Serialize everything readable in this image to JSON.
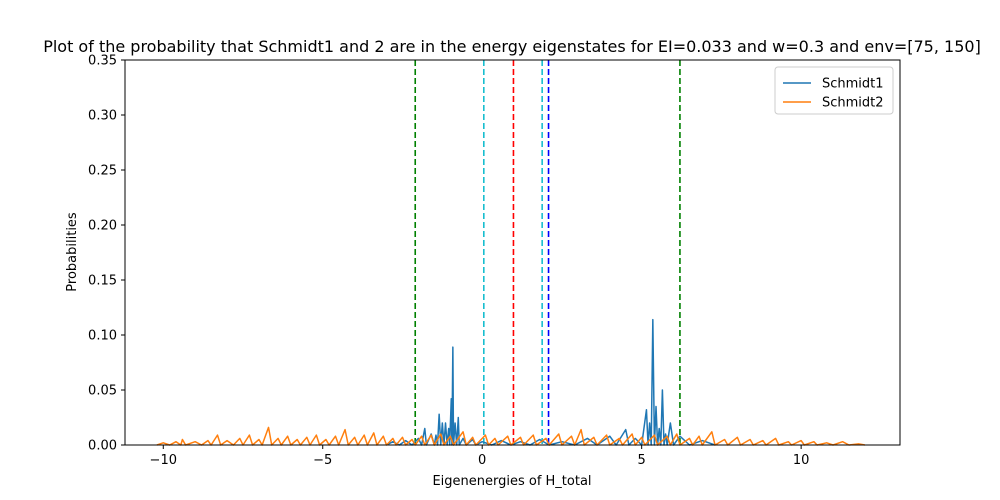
{
  "chart_data": {
    "type": "line",
    "title": "Plot of the probability that Schmidt1 and 2 are in the energy eigenstates for EI=0.033 and w=0.3 and env=[75, 150]",
    "xlabel": "Eigenenergies of H_total",
    "ylabel": "Probabilities",
    "xlim": [
      -11.2,
      13.1
    ],
    "ylim": [
      0,
      0.35
    ],
    "xticks": [
      -10,
      -5,
      0,
      5,
      10
    ],
    "xtick_labels": [
      "−10",
      "−5",
      "0",
      "5",
      "10"
    ],
    "yticks": [
      0.0,
      0.05,
      0.1,
      0.15,
      0.2,
      0.25,
      0.3,
      0.35
    ],
    "ytick_labels": [
      "0.00",
      "0.05",
      "0.10",
      "0.15",
      "0.20",
      "0.25",
      "0.30",
      "0.35"
    ],
    "legend_position": "top-right",
    "series": [
      {
        "name": "Schmidt1",
        "color": "#1f77b4",
        "points": [
          [
            -3.0,
            0.0
          ],
          [
            -2.8,
            0.003
          ],
          [
            -2.6,
            0.0
          ],
          [
            -2.4,
            0.004
          ],
          [
            -2.2,
            0.0
          ],
          [
            -2.0,
            0.006
          ],
          [
            -1.9,
            0.0
          ],
          [
            -1.8,
            0.015
          ],
          [
            -1.75,
            0.0
          ],
          [
            -1.6,
            0.01
          ],
          [
            -1.5,
            0.0
          ],
          [
            -1.45,
            0.009
          ],
          [
            -1.4,
            0.0
          ],
          [
            -1.35,
            0.028
          ],
          [
            -1.3,
            0.0
          ],
          [
            -1.25,
            0.02
          ],
          [
            -1.2,
            0.0
          ],
          [
            -1.15,
            0.02
          ],
          [
            -1.1,
            0.0
          ],
          [
            -1.05,
            0.015
          ],
          [
            -1.02,
            0.0
          ],
          [
            -0.97,
            0.042
          ],
          [
            -0.95,
            0.0
          ],
          [
            -0.92,
            0.089
          ],
          [
            -0.9,
            0.0
          ],
          [
            -0.85,
            0.02
          ],
          [
            -0.8,
            0.0
          ],
          [
            -0.75,
            0.025
          ],
          [
            -0.72,
            0.0
          ],
          [
            -0.6,
            0.006
          ],
          [
            -0.5,
            0.0
          ],
          [
            -0.3,
            0.005
          ],
          [
            -0.2,
            0.0
          ],
          [
            0.0,
            0.003
          ],
          [
            0.3,
            0.0
          ],
          [
            0.6,
            0.004
          ],
          [
            0.9,
            0.0
          ],
          [
            1.2,
            0.003
          ],
          [
            1.5,
            0.0
          ],
          [
            1.8,
            0.005
          ],
          [
            2.1,
            0.0
          ],
          [
            2.5,
            0.003
          ],
          [
            2.9,
            0.0
          ],
          [
            3.3,
            0.006
          ],
          [
            3.6,
            0.0
          ],
          [
            4.0,
            0.008
          ],
          [
            4.2,
            0.0
          ],
          [
            4.5,
            0.014
          ],
          [
            4.6,
            0.0
          ],
          [
            4.8,
            0.006
          ],
          [
            5.0,
            0.0
          ],
          [
            5.15,
            0.032
          ],
          [
            5.2,
            0.0
          ],
          [
            5.25,
            0.02
          ],
          [
            5.3,
            0.0
          ],
          [
            5.35,
            0.114
          ],
          [
            5.4,
            0.0
          ],
          [
            5.45,
            0.035
          ],
          [
            5.5,
            0.0
          ],
          [
            5.55,
            0.015
          ],
          [
            5.6,
            0.0
          ],
          [
            5.65,
            0.05
          ],
          [
            5.7,
            0.0
          ],
          [
            5.75,
            0.01
          ],
          [
            5.8,
            0.0
          ],
          [
            5.9,
            0.02
          ],
          [
            6.0,
            0.0
          ],
          [
            6.2,
            0.008
          ],
          [
            6.5,
            0.0
          ],
          [
            6.9,
            0.004
          ],
          [
            7.3,
            0.0
          ]
        ]
      },
      {
        "name": "Schmidt2",
        "color": "#ff7f0e",
        "points": [
          [
            -10.2,
            0.0
          ],
          [
            -10.0,
            0.002
          ],
          [
            -9.8,
            0.0
          ],
          [
            -9.6,
            0.003
          ],
          [
            -9.45,
            0.0
          ],
          [
            -9.4,
            0.005
          ],
          [
            -9.3,
            0.0
          ],
          [
            -9.0,
            0.003
          ],
          [
            -8.8,
            0.0
          ],
          [
            -8.6,
            0.004
          ],
          [
            -8.5,
            0.0
          ],
          [
            -8.3,
            0.009
          ],
          [
            -8.2,
            0.0
          ],
          [
            -8.0,
            0.004
          ],
          [
            -7.8,
            0.0
          ],
          [
            -7.6,
            0.006
          ],
          [
            -7.5,
            0.0
          ],
          [
            -7.3,
            0.009
          ],
          [
            -7.2,
            0.0
          ],
          [
            -7.0,
            0.005
          ],
          [
            -6.9,
            0.0
          ],
          [
            -6.7,
            0.016
          ],
          [
            -6.6,
            0.0
          ],
          [
            -6.4,
            0.006
          ],
          [
            -6.3,
            0.0
          ],
          [
            -6.1,
            0.008
          ],
          [
            -6.0,
            0.0
          ],
          [
            -5.8,
            0.005
          ],
          [
            -5.7,
            0.0
          ],
          [
            -5.5,
            0.007
          ],
          [
            -5.4,
            0.0
          ],
          [
            -5.2,
            0.009
          ],
          [
            -5.1,
            0.0
          ],
          [
            -4.9,
            0.005
          ],
          [
            -4.8,
            0.0
          ],
          [
            -4.6,
            0.008
          ],
          [
            -4.5,
            0.0
          ],
          [
            -4.3,
            0.014
          ],
          [
            -4.2,
            0.0
          ],
          [
            -4.0,
            0.007
          ],
          [
            -3.9,
            0.0
          ],
          [
            -3.7,
            0.009
          ],
          [
            -3.6,
            0.0
          ],
          [
            -3.4,
            0.011
          ],
          [
            -3.3,
            0.0
          ],
          [
            -3.1,
            0.008
          ],
          [
            -3.0,
            0.0
          ],
          [
            -2.8,
            0.006
          ],
          [
            -2.7,
            0.0
          ],
          [
            -2.5,
            0.007
          ],
          [
            -2.4,
            0.0
          ],
          [
            -2.2,
            0.005
          ],
          [
            -2.1,
            0.0
          ],
          [
            -1.9,
            0.008
          ],
          [
            -1.8,
            0.0
          ],
          [
            -1.6,
            0.009
          ],
          [
            -1.5,
            0.0
          ],
          [
            -1.3,
            0.01
          ],
          [
            -1.2,
            0.0
          ],
          [
            -1.0,
            0.008
          ],
          [
            -0.9,
            0.0
          ],
          [
            -0.6,
            0.012
          ],
          [
            -0.5,
            0.0
          ],
          [
            -0.3,
            0.007
          ],
          [
            -0.2,
            0.0
          ],
          [
            0.1,
            0.009
          ],
          [
            0.2,
            0.0
          ],
          [
            0.4,
            0.006
          ],
          [
            0.5,
            0.0
          ],
          [
            0.8,
            0.008
          ],
          [
            0.9,
            0.0
          ],
          [
            1.2,
            0.007
          ],
          [
            1.3,
            0.0
          ],
          [
            1.6,
            0.009
          ],
          [
            1.7,
            0.0
          ],
          [
            2.0,
            0.006
          ],
          [
            2.1,
            0.0
          ],
          [
            2.4,
            0.01
          ],
          [
            2.5,
            0.0
          ],
          [
            2.8,
            0.008
          ],
          [
            2.9,
            0.0
          ],
          [
            3.1,
            0.014
          ],
          [
            3.2,
            0.0
          ],
          [
            3.5,
            0.007
          ],
          [
            3.6,
            0.0
          ],
          [
            3.9,
            0.009
          ],
          [
            4.0,
            0.0
          ],
          [
            4.3,
            0.006
          ],
          [
            4.4,
            0.0
          ],
          [
            4.7,
            0.01
          ],
          [
            4.8,
            0.0
          ],
          [
            5.0,
            0.007
          ],
          [
            5.1,
            0.0
          ],
          [
            5.4,
            0.009
          ],
          [
            5.5,
            0.0
          ],
          [
            5.8,
            0.008
          ],
          [
            5.9,
            0.0
          ],
          [
            6.1,
            0.01
          ],
          [
            6.2,
            0.0
          ],
          [
            6.5,
            0.006
          ],
          [
            6.6,
            0.0
          ],
          [
            6.8,
            0.008
          ],
          [
            6.9,
            0.0
          ],
          [
            7.2,
            0.012
          ],
          [
            7.3,
            0.0
          ],
          [
            7.6,
            0.005
          ],
          [
            7.7,
            0.0
          ],
          [
            8.0,
            0.007
          ],
          [
            8.1,
            0.0
          ],
          [
            8.4,
            0.005
          ],
          [
            8.5,
            0.0
          ],
          [
            8.8,
            0.004
          ],
          [
            8.9,
            0.0
          ],
          [
            9.2,
            0.006
          ],
          [
            9.3,
            0.0
          ],
          [
            9.6,
            0.003
          ],
          [
            9.7,
            0.0
          ],
          [
            10.0,
            0.004
          ],
          [
            10.1,
            0.0
          ],
          [
            10.4,
            0.003
          ],
          [
            10.5,
            0.0
          ],
          [
            10.8,
            0.002
          ],
          [
            11.0,
            0.0
          ],
          [
            11.3,
            0.003
          ],
          [
            11.5,
            0.0
          ],
          [
            11.8,
            0.001
          ],
          [
            12.0,
            0.0
          ]
        ]
      }
    ],
    "vlines": [
      {
        "x": -2.1,
        "color": "#008000"
      },
      {
        "x": 0.05,
        "color": "#17becf"
      },
      {
        "x": 0.98,
        "color": "#ff0000"
      },
      {
        "x": 1.88,
        "color": "#17becf"
      },
      {
        "x": 2.08,
        "color": "#0000ff"
      },
      {
        "x": 6.2,
        "color": "#008000"
      }
    ]
  }
}
